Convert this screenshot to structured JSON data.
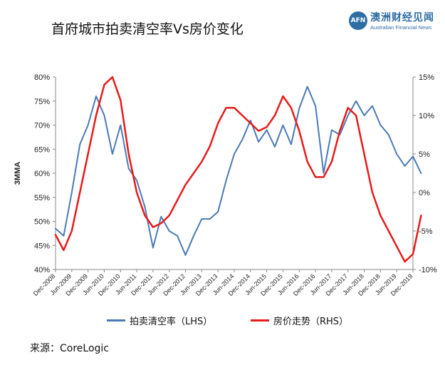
{
  "title": "首府城市拍卖清空率Vs房价变化",
  "logo": {
    "badge": "AFN",
    "name": "澳洲财经见闻",
    "subtitle": "Australian Financial News"
  },
  "source": "来源：CoreLogic",
  "colors": {
    "lhs": "#4a7ab5",
    "rhs": "#e61b1b",
    "grid": "#d8d8d8",
    "axis": "#888888"
  },
  "chart_data": {
    "type": "line",
    "ylabel": "3MMA",
    "x_tick_labels": [
      "Dec-2008",
      "Jun-2009",
      "Dec-2009",
      "Jun-2010",
      "Dec-2010",
      "Jun-2011",
      "Dec-2011",
      "Jun-2012",
      "Dec-2012",
      "Jun-2013",
      "Dec-2013",
      "Jun-2014",
      "Dec-2014",
      "Jun-2015",
      "Dec-2015",
      "Jun-2016",
      "Dec-2016",
      "Jun-2017",
      "Dec-2017",
      "Jun-2018",
      "Dec-2018",
      "Jun-2019",
      "Dec-2019"
    ],
    "y_left": {
      "min": 0.4,
      "max": 0.8,
      "ticks": [
        "40%",
        "45%",
        "50%",
        "55%",
        "60%",
        "65%",
        "70%",
        "75%",
        "80%"
      ]
    },
    "y_right": {
      "min": -10,
      "max": 15,
      "ticks": [
        "-10%",
        "-5%",
        "0%",
        "5%",
        "10%",
        "15%"
      ]
    },
    "grid": false,
    "legend_position": "bottom",
    "series": [
      {
        "name": "拍卖清空率（LHS）",
        "axis": "left",
        "x": [
          0,
          0.5,
          1,
          1.5,
          2,
          2.5,
          3,
          3.5,
          4,
          4.5,
          5,
          5.5,
          6,
          6.5,
          7,
          7.5,
          8,
          8.5,
          9,
          9.5,
          10,
          10.5,
          11,
          11.5,
          12,
          12.5,
          13,
          13.5,
          14,
          14.5,
          15,
          15.5,
          16,
          16.5,
          17,
          17.5,
          18,
          18.5,
          19,
          19.5,
          20,
          20.5,
          21,
          21.5,
          22,
          22.5
        ],
        "values": [
          0.485,
          0.47,
          0.56,
          0.66,
          0.7,
          0.76,
          0.72,
          0.64,
          0.7,
          0.61,
          0.585,
          0.53,
          0.445,
          0.51,
          0.48,
          0.47,
          0.43,
          0.47,
          0.505,
          0.505,
          0.52,
          0.585,
          0.64,
          0.67,
          0.71,
          0.665,
          0.69,
          0.655,
          0.7,
          0.66,
          0.735,
          0.78,
          0.74,
          0.6,
          0.69,
          0.68,
          0.72,
          0.75,
          0.72,
          0.74,
          0.7,
          0.68,
          0.64,
          0.615,
          0.635,
          0.6
        ]
      },
      {
        "name": "房价走势（RHS）",
        "axis": "right",
        "x": [
          0,
          0.5,
          1,
          1.5,
          2,
          2.5,
          3,
          3.5,
          4,
          4.5,
          5,
          5.5,
          6,
          6.5,
          7,
          7.5,
          8,
          8.5,
          9,
          9.5,
          10,
          10.5,
          11,
          11.5,
          12,
          12.5,
          13,
          13.5,
          14,
          14.5,
          15,
          15.5,
          16,
          16.5,
          17,
          17.5,
          18,
          18.5,
          19,
          19.5,
          20,
          20.5,
          21,
          21.5,
          22,
          22.5
        ],
        "values": [
          -5.5,
          -7.5,
          -5,
          0,
          5,
          10,
          14,
          15,
          12,
          5,
          0,
          -3,
          -4.5,
          -4,
          -3,
          -1,
          1,
          2.5,
          4,
          6,
          9,
          11,
          11,
          10,
          9,
          8,
          8.5,
          10,
          12.5,
          11,
          8,
          4,
          2,
          2,
          4,
          8,
          11,
          10,
          5,
          0,
          -3,
          -5,
          -7,
          -9,
          -8,
          -3
        ]
      }
    ]
  }
}
